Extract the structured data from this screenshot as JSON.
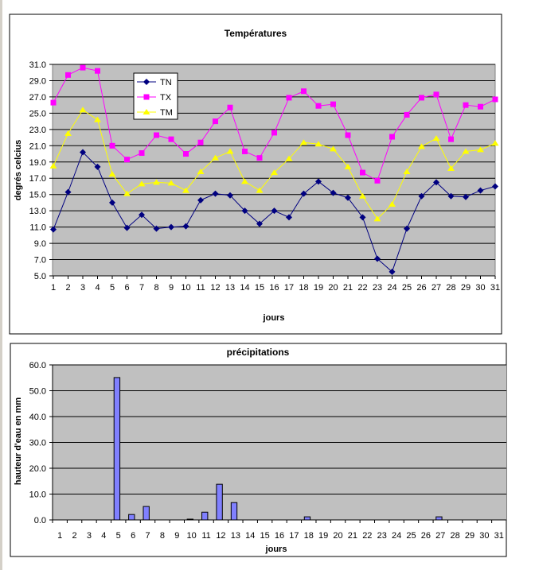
{
  "chart_data": [
    {
      "type": "line",
      "title": "Températures",
      "xlabel": "jours",
      "ylabel": "degrés celcius",
      "ylim": [
        5,
        31
      ],
      "yticks": [
        "5.0",
        "7.0",
        "9.0",
        "11.0",
        "13.0",
        "15.0",
        "17.0",
        "19.0",
        "21.0",
        "23.0",
        "25.0",
        "27.0",
        "29.0",
        "31.0"
      ],
      "x": [
        1,
        2,
        3,
        4,
        5,
        6,
        7,
        8,
        9,
        10,
        11,
        12,
        13,
        14,
        15,
        16,
        17,
        18,
        19,
        20,
        21,
        22,
        23,
        24,
        25,
        26,
        27,
        28,
        29,
        30,
        31
      ],
      "legend": "top-left",
      "grid": true,
      "series": [
        {
          "name": "TN",
          "color": "#000080",
          "marker": "diamond",
          "values": [
            10.7,
            15.3,
            20.2,
            18.4,
            14.0,
            10.9,
            12.5,
            10.8,
            11.0,
            11.1,
            14.3,
            15.1,
            14.9,
            13.0,
            11.4,
            13.0,
            12.2,
            15.1,
            16.6,
            15.2,
            14.6,
            12.2,
            7.1,
            5.5,
            10.8,
            14.8,
            16.5,
            14.8,
            14.7,
            15.5,
            16.0
          ]
        },
        {
          "name": "TX",
          "color": "#ff00ff",
          "marker": "square",
          "values": [
            26.3,
            29.7,
            30.6,
            30.2,
            21.0,
            19.3,
            20.1,
            22.3,
            21.8,
            20.0,
            21.4,
            24.0,
            25.7,
            20.3,
            19.5,
            22.6,
            26.9,
            27.7,
            25.9,
            26.1,
            22.3,
            17.7,
            16.7,
            22.1,
            24.8,
            26.9,
            27.3,
            21.8,
            26.0,
            25.8,
            26.7
          ]
        },
        {
          "name": "TM",
          "color": "#ffff00",
          "marker": "triangle",
          "values": [
            18.5,
            22.5,
            25.4,
            24.2,
            17.5,
            15.1,
            16.3,
            16.5,
            16.4,
            15.5,
            17.8,
            19.5,
            20.3,
            16.6,
            15.5,
            17.7,
            19.4,
            21.4,
            21.2,
            20.6,
            18.4,
            14.8,
            12.0,
            13.8,
            17.8,
            20.9,
            21.9,
            18.2,
            20.3,
            20.5,
            21.3
          ]
        }
      ]
    },
    {
      "type": "bar",
      "title": "précipitations",
      "xlabel": "jours",
      "ylabel": "hauteur d'eau en mm",
      "ylim": [
        0,
        60
      ],
      "yticks": [
        "0.0",
        "10.0",
        "20.0",
        "30.0",
        "40.0",
        "50.0",
        "60.0"
      ],
      "x": [
        1,
        2,
        3,
        4,
        5,
        6,
        7,
        8,
        9,
        10,
        11,
        12,
        13,
        14,
        15,
        16,
        17,
        18,
        19,
        20,
        21,
        22,
        23,
        24,
        25,
        26,
        27,
        28,
        29,
        30,
        31
      ],
      "color": "#8080ff",
      "grid": true,
      "values": [
        0,
        0,
        0,
        0,
        55.1,
        2.1,
        5.2,
        0,
        0,
        0.3,
        3.0,
        13.8,
        6.7,
        0,
        0,
        0,
        0,
        1.2,
        0,
        0,
        0,
        0,
        0,
        0,
        0,
        0,
        1.2,
        0,
        0,
        0,
        0
      ]
    }
  ]
}
